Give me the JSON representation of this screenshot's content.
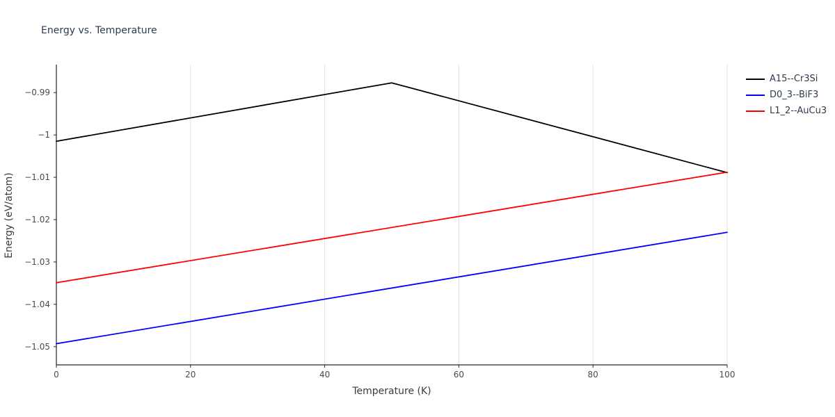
{
  "chart": {
    "title": "Energy vs. Temperature",
    "xlabel": "Temperature (K)",
    "ylabel": "Energy (eV/atom)"
  },
  "chart_data": {
    "type": "line",
    "title": "Energy vs. Temperature",
    "xlabel": "Temperature (K)",
    "ylabel": "Energy (eV/atom)",
    "xlim": [
      0,
      100
    ],
    "ylim": [
      -1.0543,
      -0.9834
    ],
    "x_ticks": [
      0,
      20,
      40,
      60,
      80,
      100
    ],
    "x_tick_labels": [
      "0",
      "20",
      "40",
      "60",
      "80",
      "100"
    ],
    "y_ticks": [
      -0.99,
      -1.0,
      -1.01,
      -1.02,
      -1.03,
      -1.04,
      -1.05
    ],
    "y_tick_labels": [
      "−0.99",
      "−1",
      "−1.01",
      "−1.02",
      "−1.03",
      "−1.04",
      "−1.05"
    ],
    "grid": "vertical-only",
    "legend_position": "top-right-outside",
    "series": [
      {
        "name": "A15--Cr3Si",
        "color": "#000000",
        "x": [
          0,
          50,
          100
        ],
        "y": [
          -1.0015,
          -0.9877,
          -1.0089
        ]
      },
      {
        "name": "D0_3--BiF3",
        "color": "#0000ff",
        "x": [
          0,
          100
        ],
        "y": [
          -1.0493,
          -1.023
        ]
      },
      {
        "name": "L1_2--AuCu3",
        "color": "#ff0000",
        "x": [
          0,
          100
        ],
        "y": [
          -1.0349,
          -1.0088
        ]
      }
    ],
    "colors": {
      "axis": "#262626",
      "grid": "#e0e0e0",
      "title_text": "#2e3b4e",
      "tick_text": "#4a4a4a"
    }
  }
}
